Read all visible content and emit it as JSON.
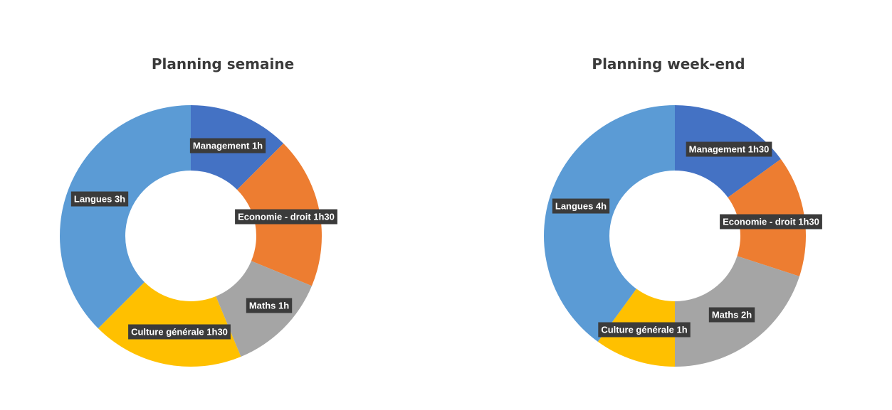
{
  "chart_data": [
    {
      "type": "pie",
      "variant": "donut",
      "title": "Planning semaine",
      "categories": [
        "Management",
        "Economie - droit",
        "Maths",
        "Culture générale",
        "Langues"
      ],
      "values": [
        1,
        1.5,
        1,
        1.5,
        3
      ],
      "unit": "h",
      "data_labels": [
        "Management 1h",
        "Economie - droit 1h30",
        "Maths 1h",
        "Culture générale 1h30",
        "Langues 3h"
      ],
      "colors": [
        "#4472c4",
        "#ed7d31",
        "#a5a5a5",
        "#ffc000",
        "#5b9bd5"
      ]
    },
    {
      "type": "pie",
      "variant": "donut",
      "title": "Planning week-end",
      "categories": [
        "Management",
        "Economie - droit",
        "Maths",
        "Culture générale",
        "Langues"
      ],
      "values": [
        1.5,
        1.5,
        2,
        1,
        4
      ],
      "unit": "h",
      "data_labels": [
        "Management 1h30",
        "Economie - droit 1h30",
        "Maths 2h",
        "Culture générale 1h",
        "Langues 4h"
      ],
      "colors": [
        "#4472c4",
        "#ed7d31",
        "#a5a5a5",
        "#ffc000",
        "#5b9bd5"
      ]
    }
  ]
}
